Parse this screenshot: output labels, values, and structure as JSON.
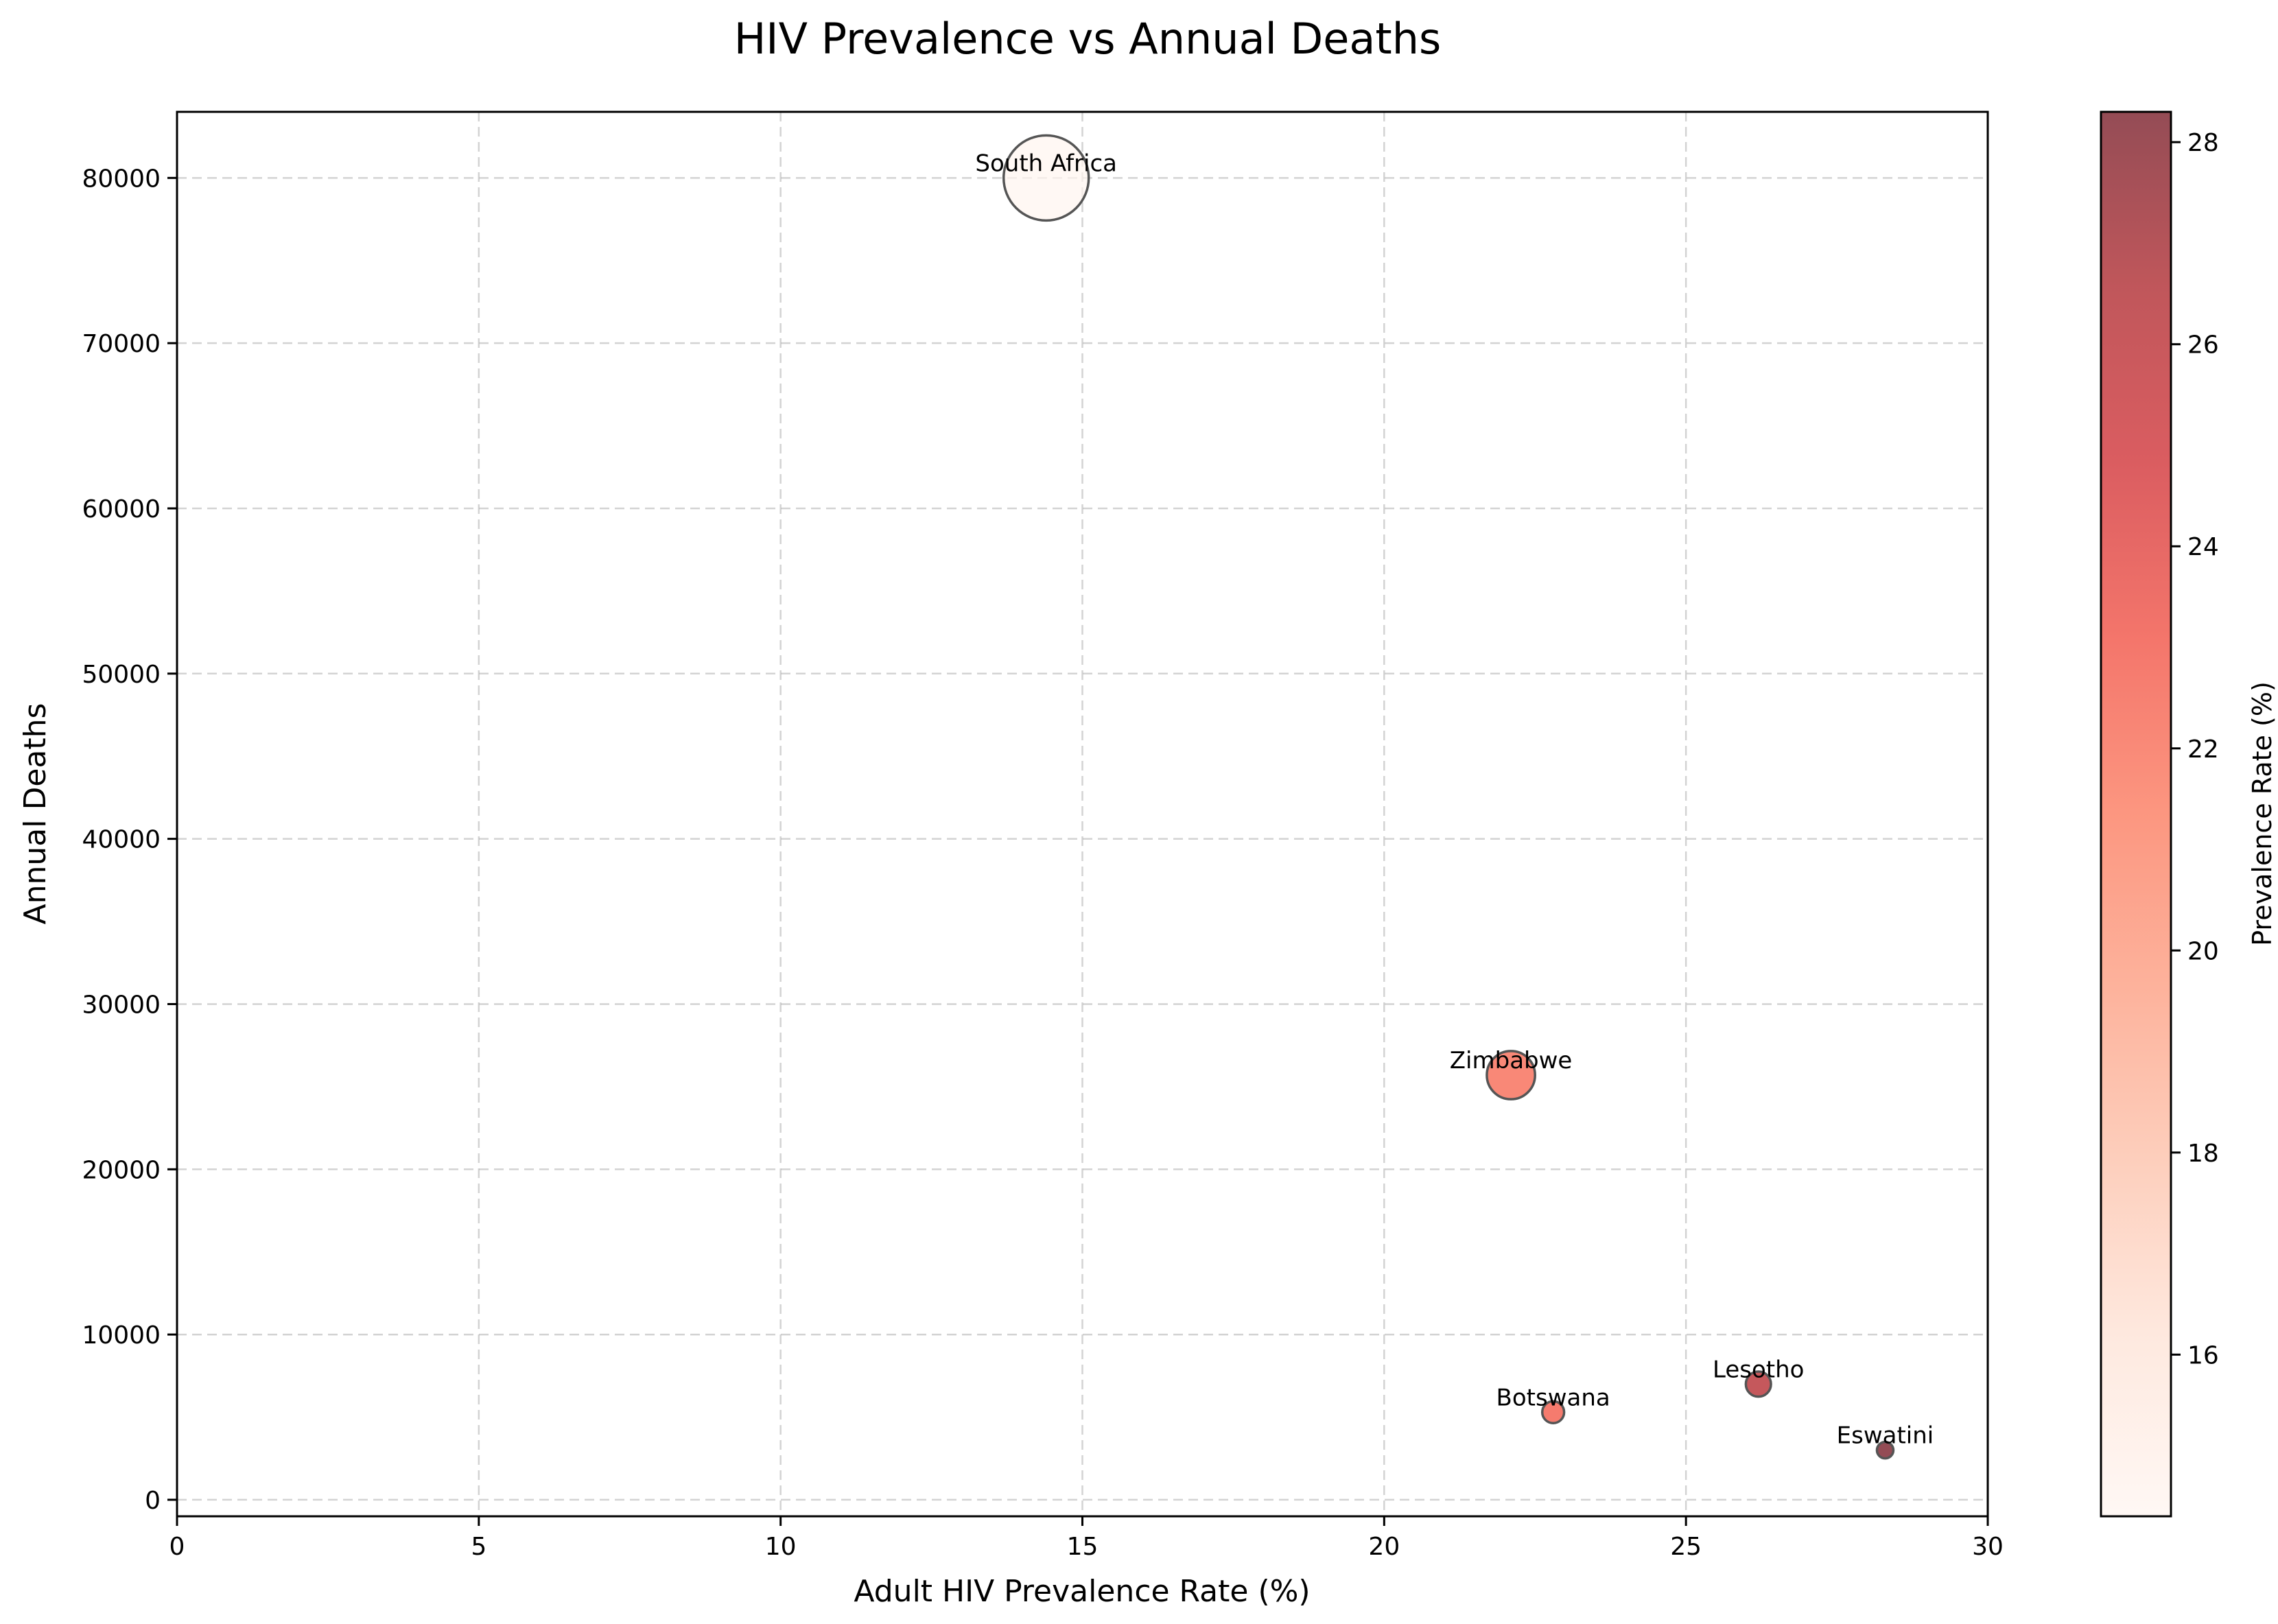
{
  "chart_data": {
    "type": "scatter",
    "title": "HIV Prevalence vs Annual Deaths",
    "xlabel": "Adult HIV Prevalence Rate (%)",
    "ylabel": "Annual Deaths",
    "xlim": [
      0,
      30
    ],
    "ylim": [
      -1000,
      84000
    ],
    "xticks": [
      0,
      5,
      10,
      15,
      20,
      25,
      30
    ],
    "yticks": [
      0,
      10000,
      20000,
      30000,
      40000,
      50000,
      60000,
      70000,
      80000
    ],
    "grid": true,
    "color_by": "prevalence",
    "colormap": "Reds",
    "points": [
      {
        "label": "South Africa",
        "x": 14.4,
        "y": 80000,
        "color_value": 14.4
      },
      {
        "label": "Zimbabwe",
        "x": 22.1,
        "y": 25700,
        "color_value": 22.1
      },
      {
        "label": "Lesotho",
        "x": 26.2,
        "y": 7000,
        "color_value": 26.2
      },
      {
        "label": "Botswana",
        "x": 22.8,
        "y": 5300,
        "color_value": 22.8
      },
      {
        "label": "Eswatini",
        "x": 28.3,
        "y": 3000,
        "color_value": 28.3
      }
    ],
    "colorbar": {
      "label": "Prevalence Rate (%)",
      "range": [
        14.4,
        28.3
      ],
      "ticks": [
        16,
        18,
        20,
        22,
        24,
        26,
        28
      ]
    }
  }
}
